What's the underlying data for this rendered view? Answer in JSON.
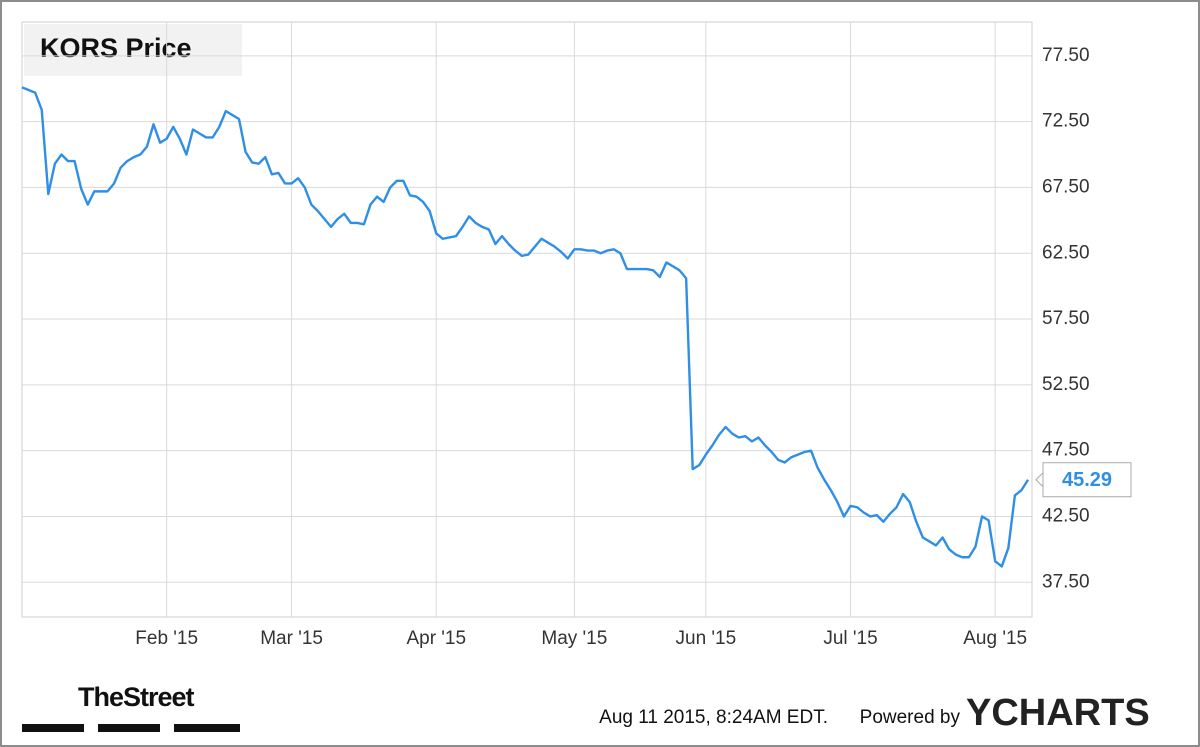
{
  "chart_data": {
    "type": "line",
    "title": "KORS Price",
    "values": [
      75.1,
      74.9,
      74.7,
      73.4,
      67.0,
      69.3,
      70.0,
      69.5,
      69.5,
      67.4,
      66.2,
      67.2,
      67.2,
      67.2,
      67.8,
      69.0,
      69.5,
      69.8,
      70.0,
      70.6,
      72.3,
      70.9,
      71.2,
      72.1,
      71.2,
      70.0,
      71.9,
      71.6,
      71.3,
      71.3,
      72.1,
      73.3,
      73.0,
      72.7,
      70.2,
      69.4,
      69.3,
      69.8,
      68.5,
      68.6,
      67.8,
      67.8,
      68.2,
      67.5,
      66.2,
      65.7,
      65.1,
      64.5,
      65.1,
      65.5,
      64.8,
      64.8,
      64.7,
      66.2,
      66.8,
      66.4,
      67.5,
      68.0,
      68.0,
      66.9,
      66.8,
      66.4,
      65.7,
      64.0,
      63.6,
      63.7,
      63.8,
      64.5,
      65.3,
      64.8,
      64.5,
      64.3,
      63.2,
      63.8,
      63.2,
      62.7,
      62.3,
      62.4,
      63.0,
      63.6,
      63.3,
      63.0,
      62.6,
      62.1,
      62.8,
      62.8,
      62.7,
      62.7,
      62.5,
      62.7,
      62.8,
      62.5,
      61.3,
      61.3,
      61.3,
      61.3,
      61.2,
      60.7,
      61.8,
      61.5,
      61.2,
      60.6,
      46.1,
      46.4,
      47.2,
      47.9,
      48.7,
      49.3,
      48.8,
      48.5,
      48.6,
      48.2,
      48.5,
      47.9,
      47.4,
      46.8,
      46.6,
      47.0,
      47.2,
      47.4,
      47.5,
      46.2,
      45.3,
      44.5,
      43.6,
      42.5,
      43.3,
      43.2,
      42.8,
      42.5,
      42.6,
      42.1,
      42.7,
      43.2,
      44.2,
      43.6,
      42.1,
      40.9,
      40.6,
      40.3,
      40.9,
      40.0,
      39.6,
      39.4,
      39.4,
      40.2,
      42.5,
      42.2,
      39.1,
      38.7,
      40.1,
      44.1,
      44.5,
      45.29
    ],
    "color": "#2f8fe6",
    "xlim": [
      0,
      153.6
    ],
    "xticks": [
      {
        "value": 22,
        "label": "Feb '15"
      },
      {
        "value": 41,
        "label": "Mar '15"
      },
      {
        "value": 63,
        "label": "Apr '15"
      },
      {
        "value": 84,
        "label": "May '15"
      },
      {
        "value": 104,
        "label": "Jun '15"
      },
      {
        "value": 126,
        "label": "Jul '15"
      },
      {
        "value": 148,
        "label": "Aug '15"
      }
    ],
    "ylim": [
      34.86,
      80.07
    ],
    "yticks": [
      {
        "value": 37.5,
        "label": "37.50"
      },
      {
        "value": 42.5,
        "label": "42.50"
      },
      {
        "value": 47.5,
        "label": "47.50"
      },
      {
        "value": 52.5,
        "label": "52.50"
      },
      {
        "value": 57.5,
        "label": "57.50"
      },
      {
        "value": 62.5,
        "label": "62.50"
      },
      {
        "value": 67.5,
        "label": "67.50"
      },
      {
        "value": 72.5,
        "label": "72.50"
      },
      {
        "value": 77.5,
        "label": "77.50"
      }
    ],
    "grid": true,
    "logo": "TheStreet",
    "timestamp": "Aug 11 2015, 8:24AM EDT.",
    "powered_by": "Powered by",
    "brand": "YCHARTS"
  }
}
